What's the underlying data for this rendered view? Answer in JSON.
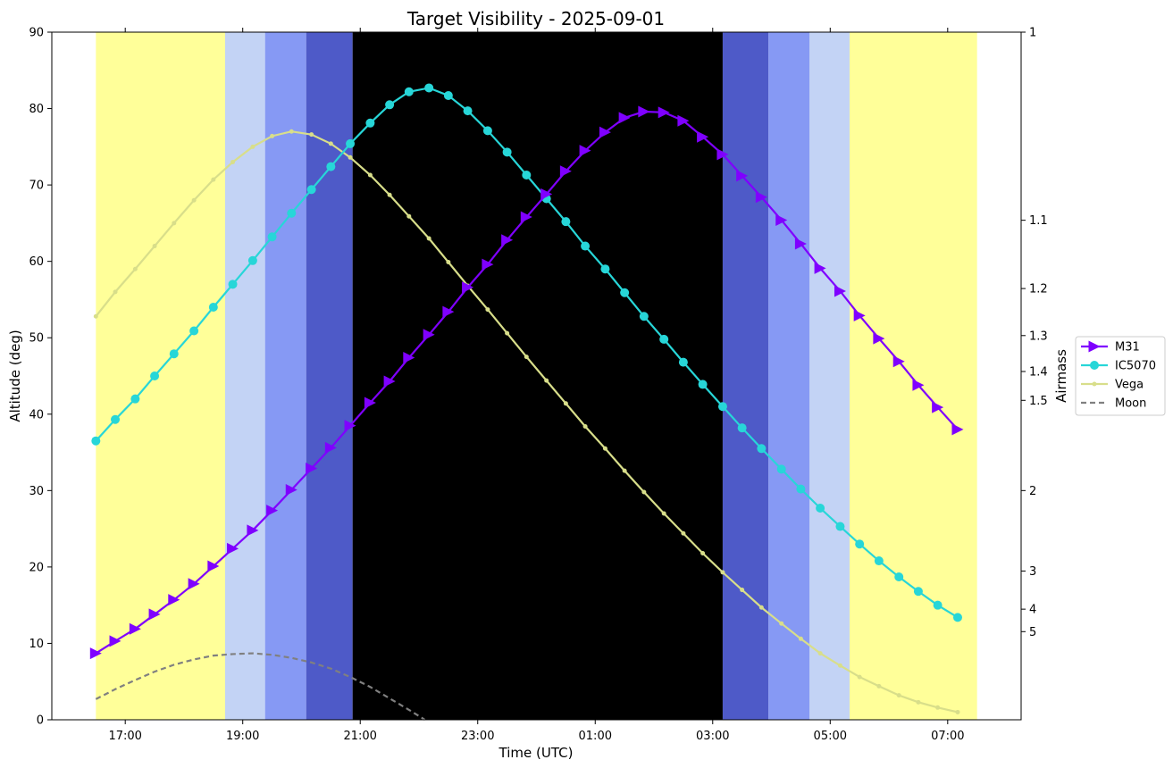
{
  "chart_data": {
    "type": "line",
    "title": "Target Visibility - 2025-09-01",
    "xlabel": "Time (UTC)",
    "ylabel": "Altitude (deg)",
    "y2label": "Airmass",
    "xlim": [
      15.75,
      32.25
    ],
    "ylim": [
      0,
      90
    ],
    "x_ticks": [
      17,
      19,
      21,
      23,
      25,
      27,
      29,
      31
    ],
    "x_tick_labels": [
      "17:00",
      "19:00",
      "21:00",
      "23:00",
      "01:00",
      "03:00",
      "05:00",
      "07:00"
    ],
    "y_ticks": [
      0,
      10,
      20,
      30,
      40,
      50,
      60,
      70,
      80,
      90
    ],
    "y_tick_labels": [
      "0",
      "10",
      "20",
      "30",
      "40",
      "50",
      "60",
      "70",
      "80",
      "90"
    ],
    "airmass_ticks": [
      1,
      1.1,
      1.2,
      1.3,
      1.4,
      1.5,
      2,
      3,
      4,
      5
    ],
    "airmass_tick_labels": [
      "1",
      "1.1",
      "1.2",
      "1.3",
      "1.4",
      "1.5",
      "2",
      "3",
      "4",
      "5"
    ],
    "grid": false,
    "legend_position": "outside-right",
    "bands": [
      {
        "x0": 16.5,
        "x1": 18.7,
        "color": "#ffff99",
        "alpha": 1.0
      },
      {
        "x0": 18.7,
        "x1": 19.38,
        "color": "#c3d3f5",
        "alpha": 1.0
      },
      {
        "x0": 19.38,
        "x1": 20.08,
        "color": "#8699f4",
        "alpha": 1.0
      },
      {
        "x0": 20.08,
        "x1": 20.87,
        "color": "#4e5ac8",
        "alpha": 1.0
      },
      {
        "x0": 20.87,
        "x1": 27.17,
        "color": "#000000",
        "alpha": 1.0
      },
      {
        "x0": 27.17,
        "x1": 27.95,
        "color": "#4e5ac8",
        "alpha": 1.0
      },
      {
        "x0": 27.95,
        "x1": 28.65,
        "color": "#8699f4",
        "alpha": 1.0
      },
      {
        "x0": 28.65,
        "x1": 29.33,
        "color": "#c3d3f5",
        "alpha": 1.0
      },
      {
        "x0": 29.33,
        "x1": 31.5,
        "color": "#ffff99",
        "alpha": 1.0
      }
    ],
    "series": [
      {
        "name": "M31",
        "color": "#7f00ff",
        "marker": "triangle-right",
        "dash": "",
        "x": [
          16.5,
          16.83,
          17.17,
          17.5,
          17.83,
          18.17,
          18.5,
          18.83,
          19.17,
          19.5,
          19.83,
          20.17,
          20.5,
          20.83,
          21.17,
          21.5,
          21.83,
          22.17,
          22.5,
          22.83,
          23.17,
          23.5,
          23.83,
          24.17,
          24.5,
          24.83,
          25.17,
          25.5,
          25.83,
          26.17,
          26.5,
          26.83,
          27.17,
          27.5,
          27.83,
          28.17,
          28.5,
          28.83,
          29.17,
          29.5,
          29.83,
          30.17,
          30.5,
          30.83,
          31.17
        ],
        "y": [
          8.7,
          10.3,
          11.9,
          13.8,
          15.7,
          17.8,
          20.1,
          22.4,
          24.8,
          27.4,
          30.1,
          32.9,
          35.6,
          38.5,
          41.5,
          44.3,
          47.4,
          50.4,
          53.4,
          56.6,
          59.6,
          62.8,
          65.8,
          68.8,
          71.8,
          74.5,
          76.9,
          78.8,
          79.6,
          79.5,
          78.4,
          76.3,
          74.0,
          71.2,
          68.4,
          65.4,
          62.3,
          59.1,
          56.1,
          52.9,
          49.9,
          46.9,
          43.8,
          40.9,
          38.0
        ]
      },
      {
        "name": "IC5070",
        "color": "#27d6d8",
        "marker": "circle",
        "dash": "",
        "x": [
          16.5,
          16.83,
          17.17,
          17.5,
          17.83,
          18.17,
          18.5,
          18.83,
          19.17,
          19.5,
          19.83,
          20.17,
          20.5,
          20.83,
          21.17,
          21.5,
          21.83,
          22.17,
          22.5,
          22.83,
          23.17,
          23.5,
          23.83,
          24.17,
          24.5,
          24.83,
          25.17,
          25.5,
          25.83,
          26.17,
          26.5,
          26.83,
          27.17,
          27.5,
          27.83,
          28.17,
          28.5,
          28.83,
          29.17,
          29.5,
          29.83,
          30.17,
          30.5,
          30.83,
          31.17
        ],
        "y": [
          36.5,
          39.3,
          42.0,
          45.0,
          47.9,
          50.9,
          54.0,
          57.0,
          60.1,
          63.2,
          66.3,
          69.4,
          72.4,
          75.4,
          78.1,
          80.5,
          82.2,
          82.7,
          81.7,
          79.7,
          77.1,
          74.3,
          71.3,
          68.2,
          65.2,
          62.0,
          59.0,
          55.9,
          52.8,
          49.8,
          46.8,
          43.9,
          41.0,
          38.2,
          35.5,
          32.8,
          30.2,
          27.7,
          25.3,
          23.0,
          20.8,
          18.7,
          16.8,
          15.0,
          13.4
        ]
      },
      {
        "name": "Vega",
        "color": "#d8de8a",
        "marker": "dot",
        "dash": "",
        "x": [
          16.5,
          16.83,
          17.17,
          17.5,
          17.83,
          18.17,
          18.5,
          18.83,
          19.17,
          19.5,
          19.83,
          20.17,
          20.5,
          20.83,
          21.17,
          21.5,
          21.83,
          22.17,
          22.5,
          22.83,
          23.17,
          23.5,
          23.83,
          24.17,
          24.5,
          24.83,
          25.17,
          25.5,
          25.83,
          26.17,
          26.5,
          26.83,
          27.17,
          27.5,
          27.83,
          28.17,
          28.5,
          28.83,
          29.17,
          29.5,
          29.83,
          30.17,
          30.5,
          30.83,
          31.17
        ],
        "y": [
          52.8,
          56.0,
          59.0,
          62.0,
          65.0,
          68.0,
          70.7,
          73.0,
          75.0,
          76.4,
          77.0,
          76.6,
          75.4,
          73.6,
          71.3,
          68.7,
          65.9,
          63.0,
          59.9,
          56.8,
          53.7,
          50.6,
          47.5,
          44.4,
          41.4,
          38.4,
          35.5,
          32.6,
          29.8,
          27.0,
          24.4,
          21.8,
          19.3,
          17.0,
          14.7,
          12.6,
          10.6,
          8.7,
          7.1,
          5.6,
          4.4,
          3.2,
          2.3,
          1.6,
          1.0
        ]
      },
      {
        "name": "Moon",
        "color": "#808080",
        "marker": "none",
        "dash": "dashed",
        "x": [
          16.5,
          16.83,
          17.17,
          17.5,
          17.83,
          18.17,
          18.5,
          18.83,
          19.17,
          19.5,
          19.83,
          20.17,
          20.5,
          20.83,
          21.17,
          21.5,
          21.83,
          22.1
        ],
        "y": [
          2.7,
          4.0,
          5.2,
          6.3,
          7.2,
          7.9,
          8.4,
          8.6,
          8.7,
          8.5,
          8.1,
          7.5,
          6.7,
          5.6,
          4.3,
          2.8,
          1.3,
          0.0
        ]
      }
    ]
  }
}
